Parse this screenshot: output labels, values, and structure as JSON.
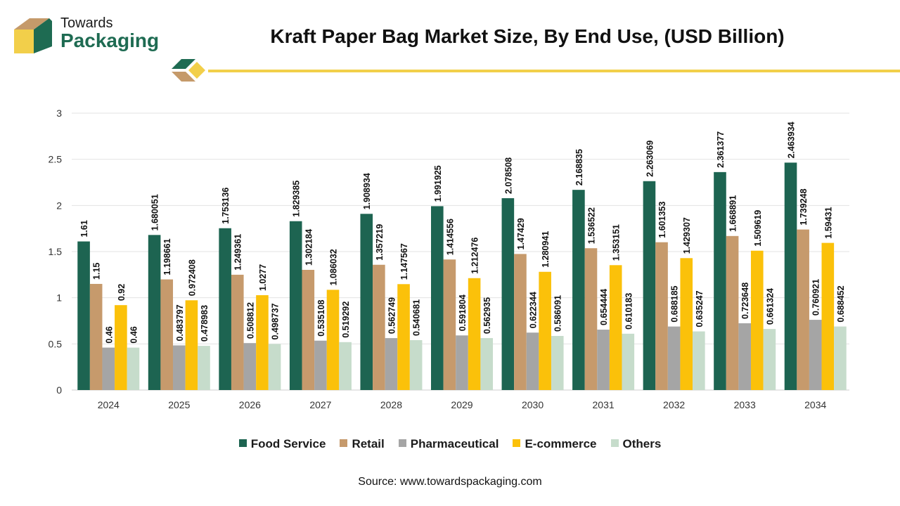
{
  "brand": {
    "line1": "Towards",
    "line2": "Packaging"
  },
  "colors": {
    "accent_yellow": "#f2cf4a",
    "brand_green": "#1e6b52",
    "brand_tan": "#c59a6a"
  },
  "source": "Source: www.towardspackaging.com",
  "chart_data": {
    "type": "bar",
    "title": "Kraft Paper Bag Market Size, By End Use, (USD Billion)",
    "xlabel": "",
    "ylabel": "",
    "ylim": [
      0,
      3
    ],
    "yticks": [
      "0",
      "0.5",
      "1",
      "1.5",
      "2",
      "2.5",
      "3"
    ],
    "grid": true,
    "legend_position": "bottom",
    "categories": [
      "2024",
      "2025",
      "2026",
      "2027",
      "2028",
      "2029",
      "2030",
      "2031",
      "2032",
      "2033",
      "2034"
    ],
    "series": [
      {
        "name": "Food Service",
        "color": "#1d6451",
        "values": [
          1.61,
          1.680051,
          1.753136,
          1.829385,
          1.908934,
          1.991925,
          2.078508,
          2.168835,
          2.263069,
          2.361377,
          2.463934
        ],
        "labels": [
          "1.61",
          "1.680051",
          "1.753136",
          "1.829385",
          "1.908934",
          "1.991925",
          "2.078508",
          "2.168835",
          "2.263069",
          "2.361377",
          "2.463934"
        ]
      },
      {
        "name": "Retail",
        "color": "#c69a6c",
        "values": [
          1.15,
          1.198661,
          1.249361,
          1.302184,
          1.357219,
          1.414556,
          1.47429,
          1.536522,
          1.601353,
          1.668891,
          1.739248
        ],
        "labels": [
          "1.15",
          "1.198661",
          "1.249361",
          "1.302184",
          "1.357219",
          "1.414556",
          "1.47429",
          "1.536522",
          "1.601353",
          "1.668891",
          "1.739248"
        ]
      },
      {
        "name": "Pharmaceutical",
        "color": "#a5a5a5",
        "values": [
          0.46,
          0.483797,
          0.508812,
          0.535108,
          0.562749,
          0.591804,
          0.622344,
          0.654444,
          0.688185,
          0.723648,
          0.760921
        ],
        "labels": [
          "0.46",
          "0.483797",
          "0.508812",
          "0.535108",
          "0.562749",
          "0.591804",
          "0.622344",
          "0.654444",
          "0.688185",
          "0.723648",
          "0.760921"
        ]
      },
      {
        "name": "E-commerce",
        "color": "#fbc10a",
        "values": [
          0.92,
          0.972408,
          1.0277,
          1.086032,
          1.147567,
          1.212476,
          1.280941,
          1.353151,
          1.429307,
          1.509619,
          1.59431
        ],
        "labels": [
          "0.92",
          "0.972408",
          "1.0277",
          "1.086032",
          "1.147567",
          "1.212476",
          "1.280941",
          "1.353151",
          "1.429307",
          "1.509619",
          "1.59431"
        ]
      },
      {
        "name": "Others",
        "color": "#c6dccb",
        "values": [
          0.46,
          0.478983,
          0.498737,
          0.519292,
          0.540681,
          0.562935,
          0.586091,
          0.610183,
          0.635247,
          0.661324,
          0.688452
        ],
        "labels": [
          "0.46",
          "0.478983",
          "0.498737",
          "0.519292",
          "0.540681",
          "0.562935",
          "0.586091",
          "0.610183",
          "0.635247",
          "0.661324",
          "0.688452"
        ]
      }
    ]
  }
}
